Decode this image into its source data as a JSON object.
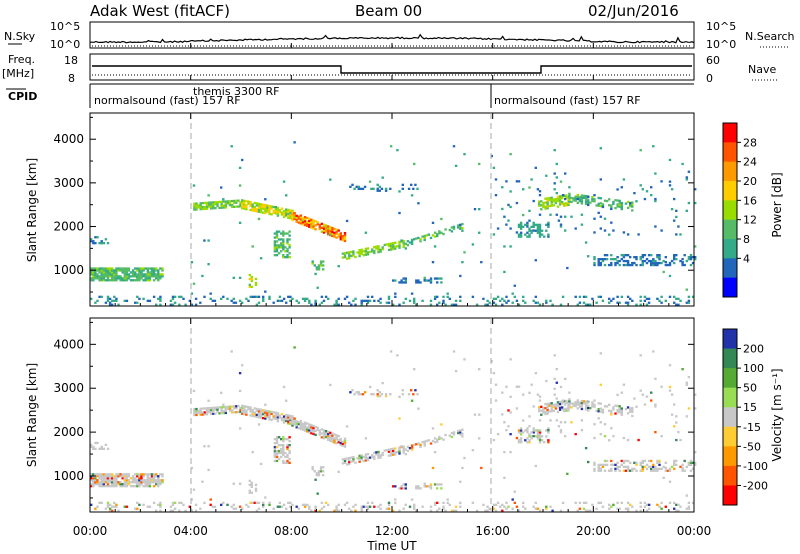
{
  "header": {
    "station": "Adak West (fitACF)",
    "beam": "Beam 00",
    "date": "02/Jun/2016"
  },
  "panels": {
    "nsky_label": "N.Sky",
    "nsearch_label": "N.Search",
    "freq_label_top": "Freq.",
    "freq_label_units": "[MHz]",
    "nave_label": "Nave",
    "cpid_label": "CPID",
    "left_ticks_nsky": [
      "10^5",
      "10^0"
    ],
    "right_ticks_nsky": [
      "10^5",
      "10^0"
    ],
    "left_ticks_freq": [
      "18",
      "8"
    ],
    "right_ticks_nave": [
      "60",
      "0"
    ]
  },
  "cpid": {
    "segments": [
      {
        "start_h": 0,
        "end_h": 16,
        "label": "normalsound (fast) 157 RF"
      },
      {
        "start_h": 16,
        "end_h": 24,
        "label": "normalsound (fast) 157 RF"
      }
    ],
    "overlay_label": "themis 3300 RF",
    "overlay_start_h": 4
  },
  "colors": {
    "grey": "#c8c8c8",
    "dashed": "#aaaaaa"
  },
  "chart_data": [
    {
      "type": "heatmap",
      "name": "power",
      "ylabel": "Slant Range [km]",
      "xlabel": "Time UT",
      "xlim": [
        0,
        24
      ],
      "ylim": [
        180,
        4600
      ],
      "x_ticks": [
        "00:00",
        "04:00",
        "08:00",
        "12:00",
        "16:00",
        "20:00",
        "00:00"
      ],
      "y_ticks": [
        1000,
        2000,
        3000,
        4000
      ],
      "colorbar_label": "Power [dB]",
      "colorbar_ticks": [
        "28",
        "24",
        "20",
        "16",
        "12",
        "8",
        "4"
      ],
      "colorbar_colors": [
        "#ff0000",
        "#ff5500",
        "#ff9900",
        "#ffcc00",
        "#99dd00",
        "#55bb66",
        "#33aa88",
        "#2266bb",
        "#0000ff"
      ]
    },
    {
      "type": "heatmap",
      "name": "velocity",
      "ylabel": "Slant Range [km]",
      "xlabel": "Time UT",
      "xlim": [
        0,
        24
      ],
      "ylim": [
        180,
        4600
      ],
      "x_ticks": [
        "00:00",
        "04:00",
        "08:00",
        "12:00",
        "16:00",
        "20:00",
        "00:00"
      ],
      "y_ticks": [
        1000,
        2000,
        3000,
        4000
      ],
      "colorbar_label": "Velocity [m s⁻¹]",
      "colorbar_ticks": [
        "200",
        "100",
        "50",
        "15",
        "-15",
        "-50",
        "-100",
        "-200"
      ],
      "colorbar_colors": [
        "#2233aa",
        "#338855",
        "#55aa33",
        "#99dd55",
        "#c8c8c8",
        "#ffcc33",
        "#ff9900",
        "#ff5500",
        "#ff0000"
      ]
    }
  ]
}
